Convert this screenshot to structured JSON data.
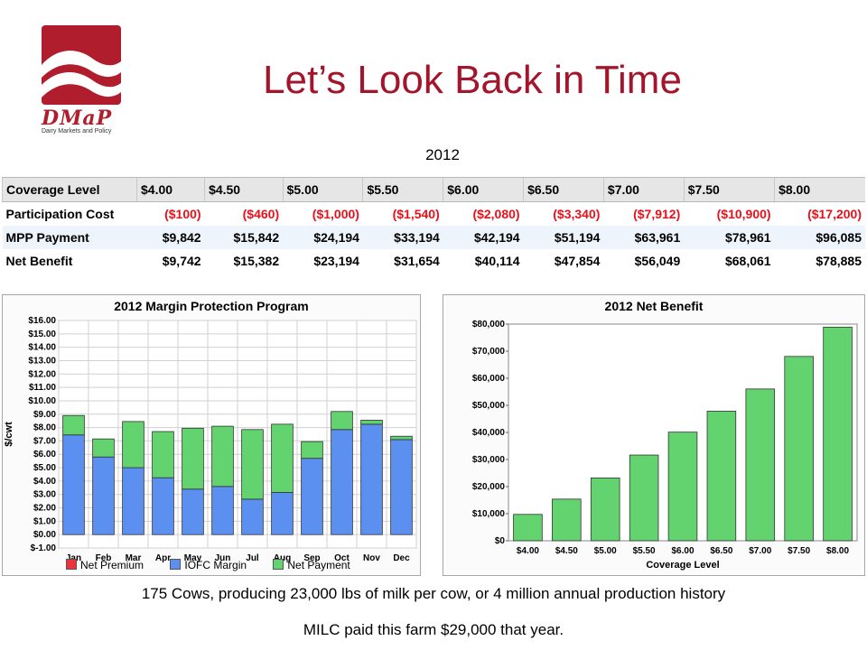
{
  "logo": {
    "word": "DMaP",
    "tagline": "Dairy Markets and Policy"
  },
  "title": "Let’s Look Back in Time",
  "year": "2012",
  "table": {
    "header": [
      "Coverage Level",
      "$4.00",
      "$4.50",
      "$5.00",
      "$5.50",
      "$6.00",
      "$6.50",
      "$7.00",
      "$7.50",
      "$8.00"
    ],
    "rows": [
      {
        "label": "Participation Cost",
        "values": [
          "($100)",
          "($460)",
          "($1,000)",
          "($1,540)",
          "($2,080)",
          "($3,340)",
          "($7,912)",
          "($10,900)",
          "($17,200)"
        ]
      },
      {
        "label": "MPP Payment",
        "values": [
          "$9,842",
          "$15,842",
          "$24,194",
          "$33,194",
          "$42,194",
          "$51,194",
          "$63,961",
          "$78,961",
          "$96,085"
        ]
      },
      {
        "label": "Net Benefit",
        "values": [
          "$9,742",
          "$15,382",
          "$23,194",
          "$31,654",
          "$40,114",
          "$47,854",
          "$56,049",
          "$68,061",
          "$78,885"
        ]
      }
    ]
  },
  "chart_data": [
    {
      "type": "bar",
      "stacked": true,
      "title": "2012 Margin Protection Program",
      "ylabel": "$/cwt",
      "xlabel": "",
      "ylim": [
        -1,
        16
      ],
      "yticks": [
        "$-1.00",
        "$0.00",
        "$1.00",
        "$2.00",
        "$3.00",
        "$4.00",
        "$5.00",
        "$6.00",
        "$7.00",
        "$8.00",
        "$9.00",
        "$10.00",
        "$11.00",
        "$12.00",
        "$13.00",
        "$14.00",
        "$15.00",
        "$16.00"
      ],
      "grid": true,
      "legend_position": "bottom",
      "categories": [
        "Jan",
        "Feb",
        "Mar",
        "Apr",
        "May",
        "Jun",
        "Jul",
        "Aug",
        "Sep",
        "Oct",
        "Nov",
        "Dec"
      ],
      "series": [
        {
          "name": "Net Premium",
          "color": "#e8343a",
          "values": [
            0,
            0,
            0,
            0,
            0,
            0,
            0,
            0,
            0,
            0,
            0,
            0
          ]
        },
        {
          "name": "IOFC Margin",
          "color": "#5b8ff0",
          "values": [
            7.45,
            5.8,
            5.0,
            4.25,
            3.4,
            3.6,
            2.65,
            3.15,
            5.7,
            7.85,
            8.25,
            7.1
          ]
        },
        {
          "name": "Net Payment",
          "color": "#62d36e",
          "values": [
            1.45,
            1.35,
            3.45,
            3.45,
            4.55,
            4.5,
            5.2,
            5.1,
            1.25,
            1.35,
            0.3,
            0.25
          ]
        }
      ]
    },
    {
      "type": "bar",
      "title": "2012 Net Benefit",
      "xlabel": "Coverage Level",
      "ylabel": "",
      "ylim": [
        0,
        80000
      ],
      "yticks": [
        "$0",
        "$10,000",
        "$20,000",
        "$30,000",
        "$40,000",
        "$50,000",
        "$60,000",
        "$70,000",
        "$80,000"
      ],
      "grid": false,
      "color": "#62d36e",
      "categories": [
        "$4.00",
        "$4.50",
        "$5.00",
        "$5.50",
        "$6.00",
        "$6.50",
        "$7.00",
        "$7.50",
        "$8.00"
      ],
      "values": [
        9742,
        15382,
        23194,
        31654,
        40114,
        47854,
        56049,
        68061,
        78885
      ]
    }
  ],
  "footer": {
    "line1": "175 Cows, producing 23,000 lbs of milk per cow, or 4 million annual production history",
    "line2": "MILC paid this farm $29,000 that year."
  }
}
